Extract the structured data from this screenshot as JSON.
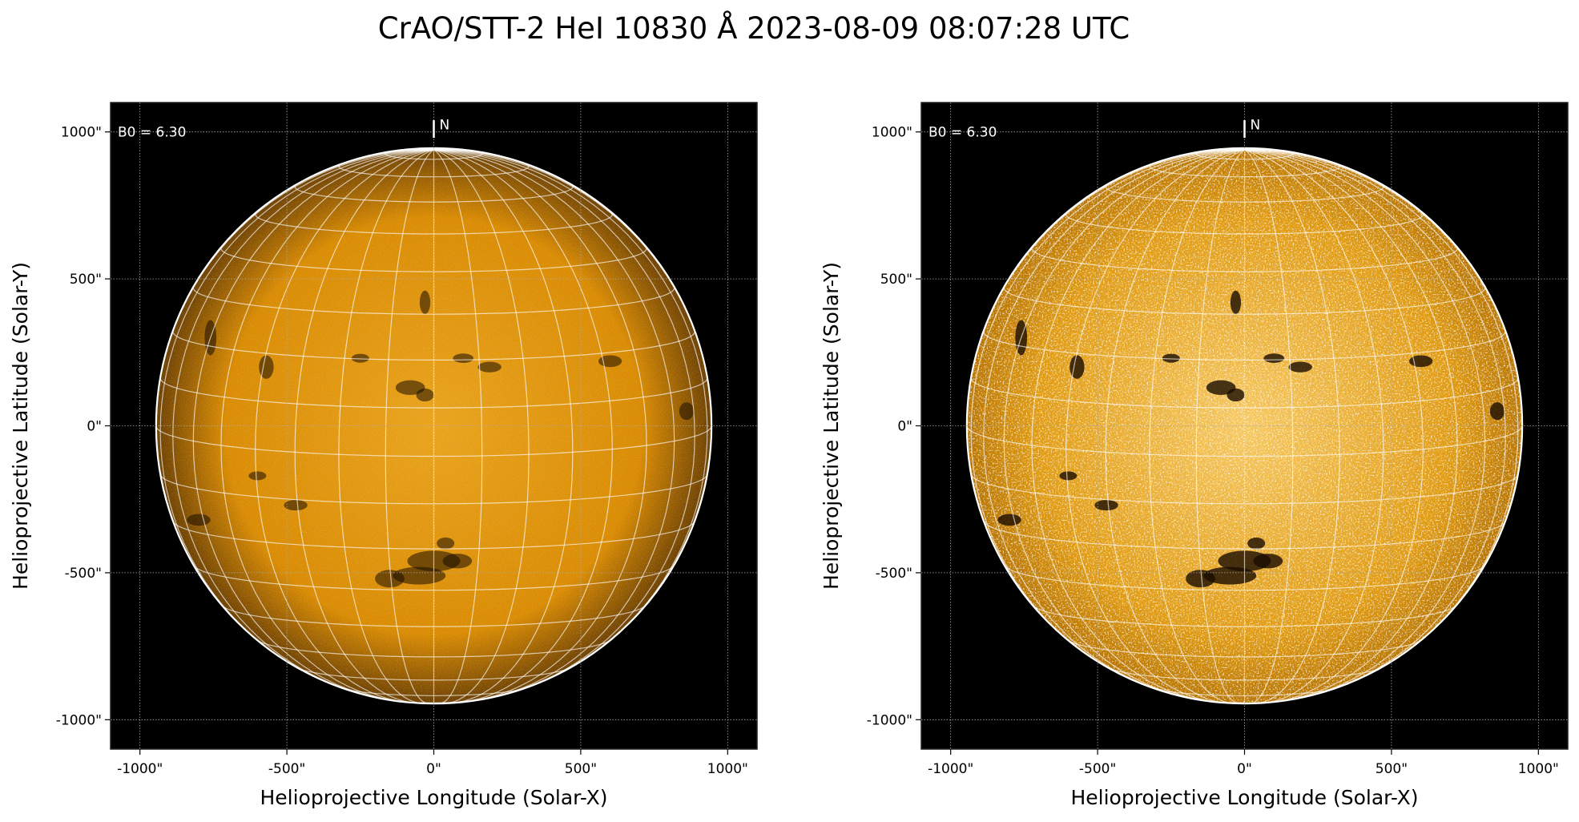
{
  "title": "CrAO/STT-2 HeI 10830 Å 2023-08-09 08:07:28 UTC",
  "chart_data": [
    {
      "type": "heatmap",
      "panel": "left",
      "xlabel": "Helioprojective Longitude (Solar-X)",
      "ylabel": "Helioprojective Latitude (Solar-Y)",
      "xlim": [
        -1100,
        1100
      ],
      "ylim": [
        -1100,
        1100
      ],
      "xticks": [
        -1000,
        -500,
        0,
        500,
        1000
      ],
      "yticks": [
        -1000,
        -500,
        0,
        500,
        1000
      ],
      "xtick_labels": [
        "-1000\"",
        "-500\"",
        "0\"",
        "500\"",
        "1000\""
      ],
      "ytick_labels": [
        "-1000\"",
        "-500\"",
        "0\"",
        "500\"",
        "1000\""
      ],
      "annotation": "B0 = 6.30",
      "north_label": "N",
      "b0_deg": 6.3,
      "solar_radius_arcsec": 945,
      "grid": true,
      "colormap_color": "#d98a00",
      "contrast": "normal"
    },
    {
      "type": "heatmap",
      "panel": "right",
      "xlabel": "Helioprojective Longitude (Solar-X)",
      "ylabel": "Helioprojective Latitude (Solar-Y)",
      "xlim": [
        -1100,
        1100
      ],
      "ylim": [
        -1100,
        1100
      ],
      "xticks": [
        -1000,
        -500,
        0,
        500,
        1000
      ],
      "yticks": [
        -1000,
        -500,
        0,
        500,
        1000
      ],
      "xtick_labels": [
        "-1000\"",
        "-500\"",
        "0\"",
        "500\"",
        "1000\""
      ],
      "ytick_labels": [
        "-1000\"",
        "-500\"",
        "0\"",
        "500\"",
        "1000\""
      ],
      "annotation": "B0 = 6.30",
      "north_label": "N",
      "b0_deg": 6.3,
      "solar_radius_arcsec": 945,
      "grid": true,
      "colormap_color": "#e09a10",
      "contrast": "enhanced"
    }
  ]
}
